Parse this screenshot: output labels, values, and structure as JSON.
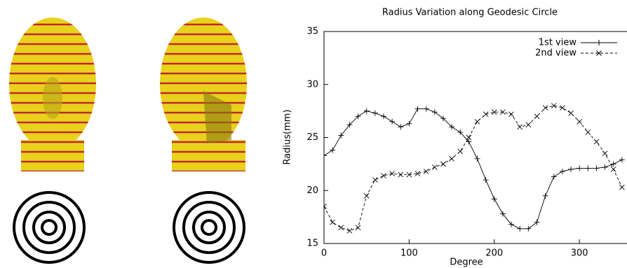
{
  "chart_data": {
    "type": "line",
    "title": "Radius Variation along Geodesic Circle",
    "x_label": "Degree",
    "y_label": "Radius(mm)",
    "x": [
      0,
      10,
      20,
      30,
      40,
      50,
      60,
      70,
      80,
      90,
      100,
      110,
      120,
      130,
      140,
      150,
      160,
      170,
      180,
      190,
      200,
      210,
      220,
      230,
      240,
      250,
      260,
      270,
      280,
      290,
      300,
      310,
      320,
      330,
      340,
      350
    ],
    "series": [
      {
        "name": "1st view",
        "color": "#000000",
        "values": [
          23.3,
          23.8,
          25.2,
          26.2,
          27,
          27.5,
          27.3,
          27,
          26.5,
          26,
          26.3,
          27.7,
          27.7,
          27.4,
          26.8,
          26,
          25.5,
          24.6,
          23,
          21,
          19.2,
          17.8,
          16.8,
          16.4,
          16.4,
          17,
          19.5,
          21.3,
          21.8,
          22,
          22.1,
          22.1,
          22.1,
          22.2,
          22.5,
          22.9
        ]
      },
      {
        "name": "2nd view",
        "color": "#000000",
        "values": [
          18.5,
          17,
          16.5,
          16.2,
          16.5,
          19.5,
          21,
          21.4,
          21.6,
          21.5,
          21.5,
          21.6,
          21.8,
          22.2,
          22.5,
          23,
          23.7,
          25,
          26.5,
          27.2,
          27.4,
          27.4,
          27.2,
          26,
          26.2,
          27,
          27.8,
          28,
          27.8,
          27.3,
          26.5,
          25.5,
          24.6,
          23.5,
          22,
          20.3
        ]
      }
    ],
    "xlim": [
      0,
      360
    ],
    "ylim": [
      15,
      35
    ],
    "xticks": [
      0,
      100,
      200,
      300
    ],
    "yticks": [
      15,
      20,
      25,
      30,
      35
    ],
    "legend": "top-right"
  }
}
